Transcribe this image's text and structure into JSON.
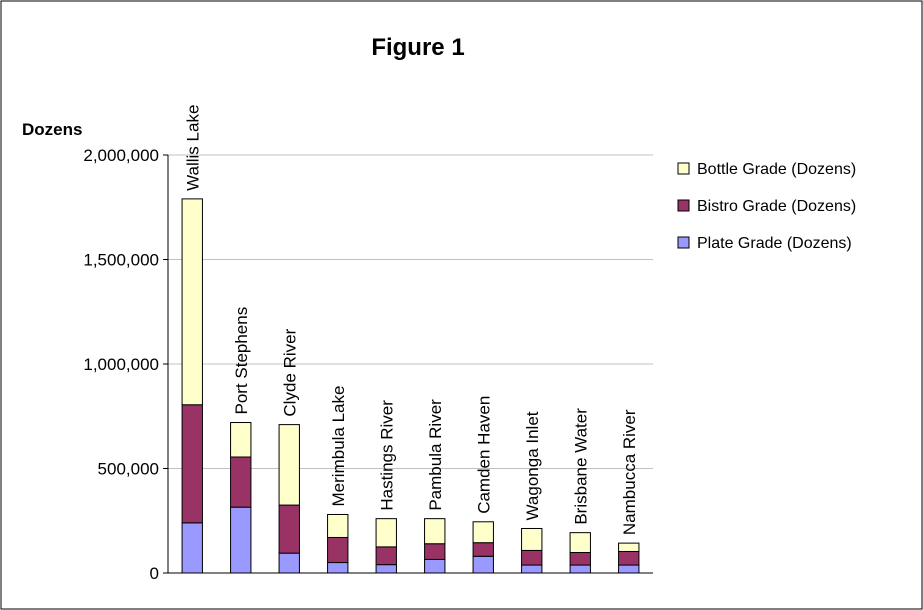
{
  "chart_data": {
    "type": "bar",
    "stacked": true,
    "title": "Figure 1",
    "ylabel": "Dozens",
    "xlabel": "",
    "ylim": [
      0,
      2000000
    ],
    "yticks": [
      0,
      500000,
      1000000,
      1500000,
      2000000
    ],
    "ytick_labels": [
      "0",
      "500,000",
      "1,000,000",
      "1,500,000",
      "2,000,000"
    ],
    "grid": true,
    "legend_position": "right",
    "categories": [
      "Wallis Lake",
      "Port Stephens",
      "Clyde River",
      "Merimbula Lake",
      "Hastings River",
      "Pambula River",
      "Camden Haven",
      "Wagonga Inlet",
      "Brisbane Water",
      "Nambucca River"
    ],
    "series": [
      {
        "name": "Plate Grade (Dozens)",
        "color": "#9999ff",
        "values": [
          240000,
          315000,
          95000,
          50000,
          40000,
          65000,
          80000,
          38000,
          38000,
          38000
        ]
      },
      {
        "name": "Bistro Grade (Dozens)",
        "color": "#993366",
        "values": [
          565000,
          240000,
          230000,
          120000,
          85000,
          75000,
          65000,
          70000,
          60000,
          65000
        ]
      },
      {
        "name": "Bottle Grade (Dozens)",
        "color": "#ffffcc",
        "values": [
          985000,
          165000,
          385000,
          110000,
          135000,
          120000,
          100000,
          105000,
          95000,
          40000
        ]
      }
    ]
  }
}
